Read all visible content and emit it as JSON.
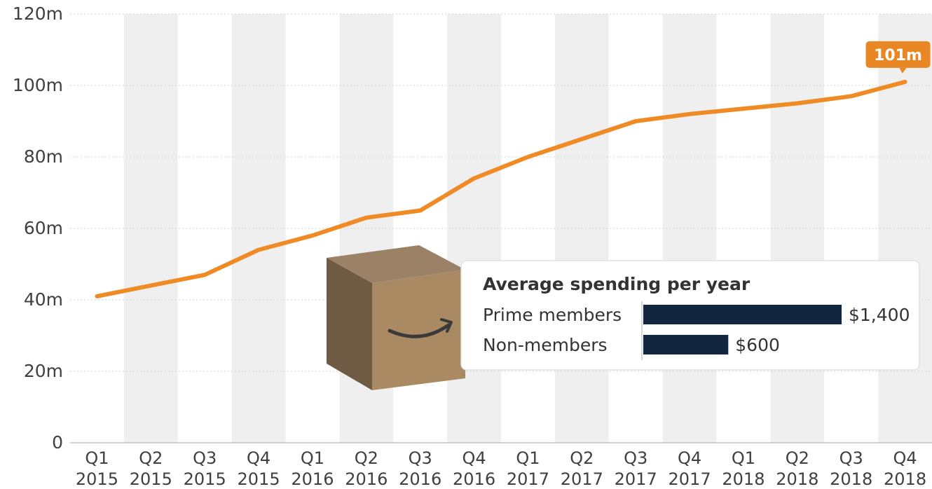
{
  "chart_data": {
    "type": "line",
    "categories": [
      [
        "Q1",
        "2015"
      ],
      [
        "Q2",
        "2015"
      ],
      [
        "Q3",
        "2015"
      ],
      [
        "Q4",
        "2015"
      ],
      [
        "Q1",
        "2016"
      ],
      [
        "Q2",
        "2016"
      ],
      [
        "Q3",
        "2016"
      ],
      [
        "Q4",
        "2016"
      ],
      [
        "Q1",
        "2017"
      ],
      [
        "Q2",
        "2017"
      ],
      [
        "Q3",
        "2017"
      ],
      [
        "Q4",
        "2017"
      ],
      [
        "Q1",
        "2018"
      ],
      [
        "Q2",
        "2018"
      ],
      [
        "Q3",
        "2018"
      ],
      [
        "Q4",
        "2018"
      ]
    ],
    "series": [
      {
        "values": [
          41,
          44,
          47,
          54,
          58,
          63,
          65,
          74,
          80,
          85,
          90,
          92,
          93.5,
          95,
          97,
          101
        ]
      }
    ],
    "ylim": [
      0,
      120
    ],
    "yticks": [
      0,
      20,
      40,
      60,
      80,
      100,
      120
    ],
    "ytick_labels": [
      "0",
      "20m",
      "40m",
      "60m",
      "80m",
      "100m",
      "120m"
    ],
    "grid": true,
    "annotations": [
      {
        "text": "101m",
        "point_index": 15
      }
    ],
    "inset": {
      "type": "bar",
      "title": "Average spending per year",
      "categories": [
        "Prime members",
        "Non-members"
      ],
      "values": [
        1400,
        600
      ],
      "value_labels": [
        "$1,400",
        "$600"
      ],
      "max": 1400
    },
    "colors": {
      "line": "#f08a24",
      "callout": "#ea8725",
      "band": "#efefef",
      "bar": "#13263f",
      "gridline": "#d9d9d9",
      "box_top": "#9b8166",
      "box_left": "#6f5a44",
      "box_front": "#a98a63",
      "smile": "#3a3a3a"
    },
    "icons": [
      "amazon-box-icon",
      "amazon-smile-icon"
    ]
  }
}
